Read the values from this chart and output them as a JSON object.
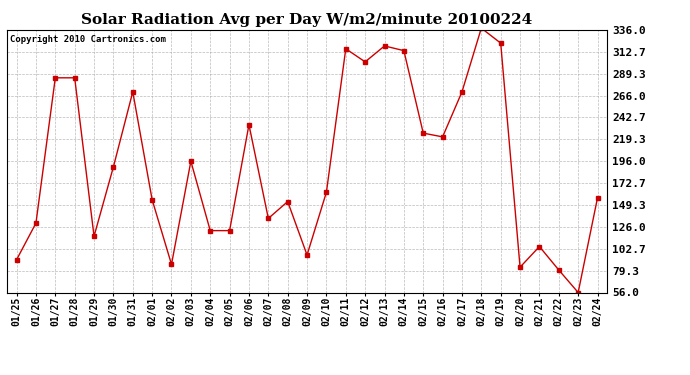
{
  "title": "Solar Radiation Avg per Day W/m2/minute 20100224",
  "copyright": "Copyright 2010 Cartronics.com",
  "dates": [
    "01/25",
    "01/26",
    "01/27",
    "01/28",
    "01/29",
    "01/30",
    "01/31",
    "02/01",
    "02/02",
    "02/03",
    "02/04",
    "02/05",
    "02/06",
    "02/07",
    "02/08",
    "02/09",
    "02/10",
    "02/11",
    "02/12",
    "02/13",
    "02/14",
    "02/15",
    "02/16",
    "02/17",
    "02/18",
    "02/19",
    "02/20",
    "02/21",
    "02/22",
    "02/23",
    "02/24"
  ],
  "values": [
    91,
    130,
    285,
    285,
    116,
    190,
    270,
    155,
    86,
    196,
    122,
    122,
    235,
    135,
    153,
    96,
    163,
    316,
    302,
    319,
    314,
    226,
    222,
    270,
    338,
    322,
    83,
    105,
    80,
    56,
    157
  ],
  "y_ticks": [
    56.0,
    79.3,
    102.7,
    126.0,
    149.3,
    172.7,
    196.0,
    219.3,
    242.7,
    266.0,
    289.3,
    312.7,
    336.0
  ],
  "line_color": "#cc0000",
  "marker": "s",
  "marker_size": 2.5,
  "bg_color": "#ffffff",
  "plot_bg_color": "#ffffff",
  "grid_color": "#aaaaaa",
  "title_fontsize": 11,
  "copyright_fontsize": 6.5,
  "tick_fontsize": 7,
  "ytick_fontsize": 8,
  "ylim": [
    56.0,
    336.0
  ]
}
